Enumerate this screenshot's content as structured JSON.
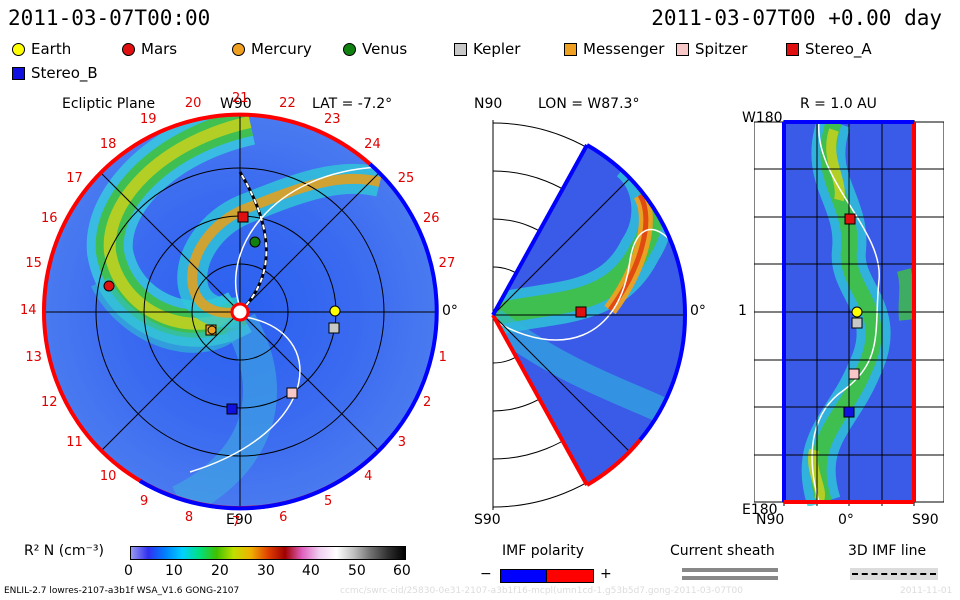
{
  "header": {
    "left_title": "2011-03-07T00:00",
    "right_title": "2011-03-07T00 +0.00 day"
  },
  "legend": [
    {
      "label": "Earth",
      "shape": "circle",
      "color": "#ffff00"
    },
    {
      "label": "Mars",
      "shape": "circle",
      "color": "#e01010"
    },
    {
      "label": "Mercury",
      "shape": "circle",
      "color": "#f0a020"
    },
    {
      "label": "Venus",
      "shape": "circle",
      "color": "#108010"
    },
    {
      "label": "Kepler",
      "shape": "square",
      "color": "#c8c8c8"
    },
    {
      "label": "Messenger",
      "shape": "square",
      "color": "#f0a020"
    },
    {
      "label": "Spitzer",
      "shape": "square",
      "color": "#f8c8c8"
    },
    {
      "label": "Stereo_A",
      "shape": "square",
      "color": "#e01010"
    },
    {
      "label": "Stereo_B",
      "shape": "square",
      "color": "#1010e0"
    }
  ],
  "ecliptic": {
    "title": "Ecliptic Plane",
    "lat_label": "LAT = -7.2°",
    "top_label": "W90",
    "bottom_label": "E90",
    "right_label": "0°",
    "rotation_numbers": [
      "20",
      "21",
      "22",
      "23",
      "24",
      "25",
      "26",
      "27",
      "0",
      "1",
      "2",
      "3",
      "4",
      "5",
      "6",
      "7",
      "8",
      "9",
      "10",
      "11",
      "12",
      "13",
      "14",
      "15",
      "16",
      "17",
      "18",
      "19"
    ]
  },
  "meridional": {
    "lon_label": "LON = W87.3°",
    "top_label": "N90",
    "bottom_label": "S90",
    "right_label": "0°"
  },
  "radial": {
    "title": "R = 1.0 AU",
    "top_label": "W180",
    "bottom_label": "E180",
    "mid_label": "1",
    "x_left": "N90",
    "x_mid": "0°",
    "x_right": "S90"
  },
  "colorbar": {
    "label": "R² N (cm⁻³)",
    "ticks": [
      "0",
      "10",
      "20",
      "30",
      "40",
      "50",
      "60"
    ],
    "stops": [
      "#9a9af0",
      "#3030f0",
      "#0080ff",
      "#00d0ff",
      "#00e080",
      "#40c000",
      "#c0e000",
      "#f0b000",
      "#e04000",
      "#a00000",
      "#e060c0",
      "#f0d0f0",
      "#ffffff",
      "#c0c0c0",
      "#707070",
      "#303030",
      "#000000"
    ]
  },
  "imf_legend": {
    "polarity_label": "IMF polarity",
    "minus": "−",
    "plus": "+",
    "current_sheath_label": "Current sheath",
    "imf_line_label": "3D IMF line"
  },
  "footer": {
    "left": "ENLIL-2.7 lowres-2107-a3b1f WSA_V1.6 GONG-2107",
    "watermark": "ccmc/swrc-cid/25830-0e31-2107-a3b1f16-mcpl(umn1cd-1.g53b5d7.gong-2011-03-07T00",
    "watermark_right": "2011-11-01"
  },
  "colors": {
    "positive_polarity": "#ff0000",
    "negative_polarity": "#0000ff",
    "background_wind": "#3a5ae8"
  }
}
